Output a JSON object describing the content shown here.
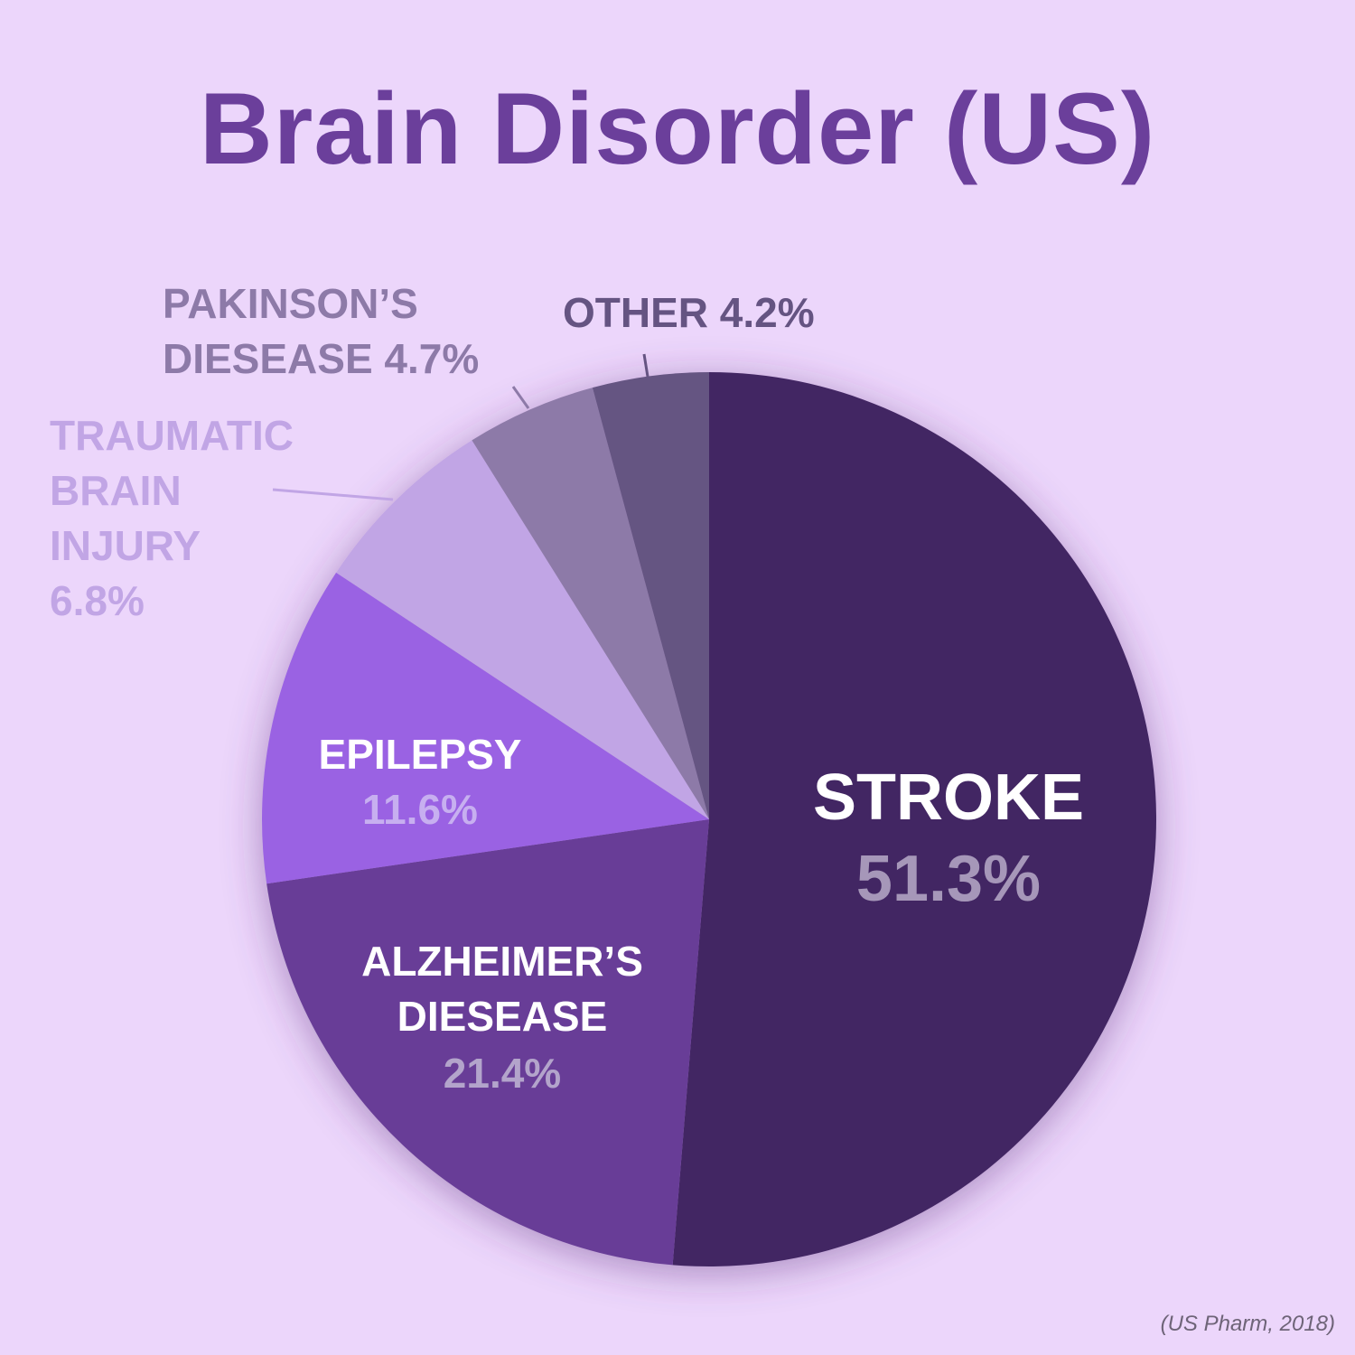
{
  "title": "Brain Disorder (US)",
  "source": "(US Pharm, 2018)",
  "chart_data": {
    "type": "pie",
    "title": "Brain Disorder (US)",
    "slices": [
      {
        "label": "STROKE",
        "value": 51.3,
        "value_text": "51.3%",
        "color": "#432864"
      },
      {
        "label": "ALZHEIMER’S DIESEASE",
        "value": 21.4,
        "value_text": "21.4%",
        "color": "#683d97"
      },
      {
        "label": "EPILEPSY",
        "value": 11.6,
        "value_text": "11.6%",
        "color": "#9a62e3"
      },
      {
        "label": "TRAUMATIC BRAIN INJURY",
        "value": 6.8,
        "value_text": "6.8%",
        "color": "#c1a5e5"
      },
      {
        "label": "PAKINSON’S DIESEASE",
        "value": 4.7,
        "value_text": "4.7%",
        "color": "#8d7aa8"
      },
      {
        "label": "OTHER",
        "value": 4.2,
        "value_text": "4.2%",
        "color": "#655482"
      }
    ]
  }
}
